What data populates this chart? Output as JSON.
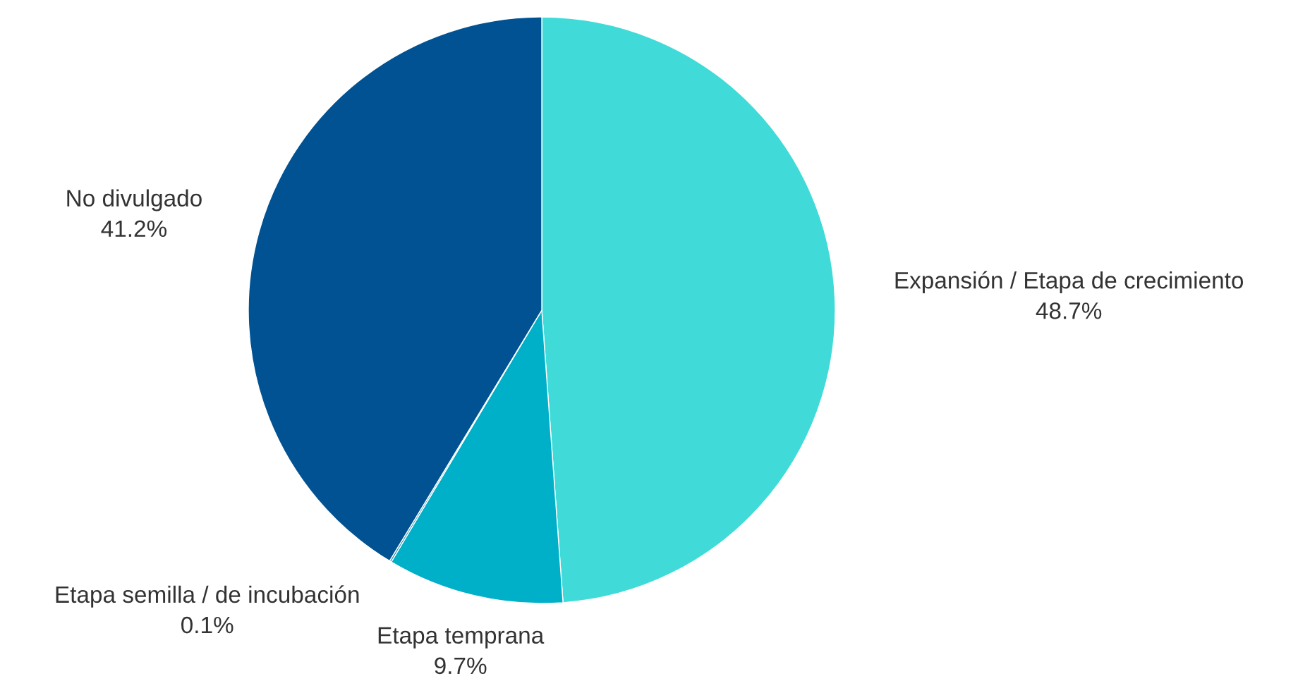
{
  "chart_data": {
    "type": "pie",
    "categories": [
      "Expansión / Etapa de crecimiento",
      "Etapa temprana",
      "Etapa semilla / de incubación",
      "No divulgado"
    ],
    "values": [
      48.7,
      9.7,
      0.1,
      41.2
    ],
    "value_labels": [
      "48.7%",
      "9.7%",
      "0.1%",
      "41.2%"
    ],
    "colors": [
      "#40dbd8",
      "#00b0c8",
      "#1a7fa6",
      "#005293"
    ],
    "legend": false
  }
}
